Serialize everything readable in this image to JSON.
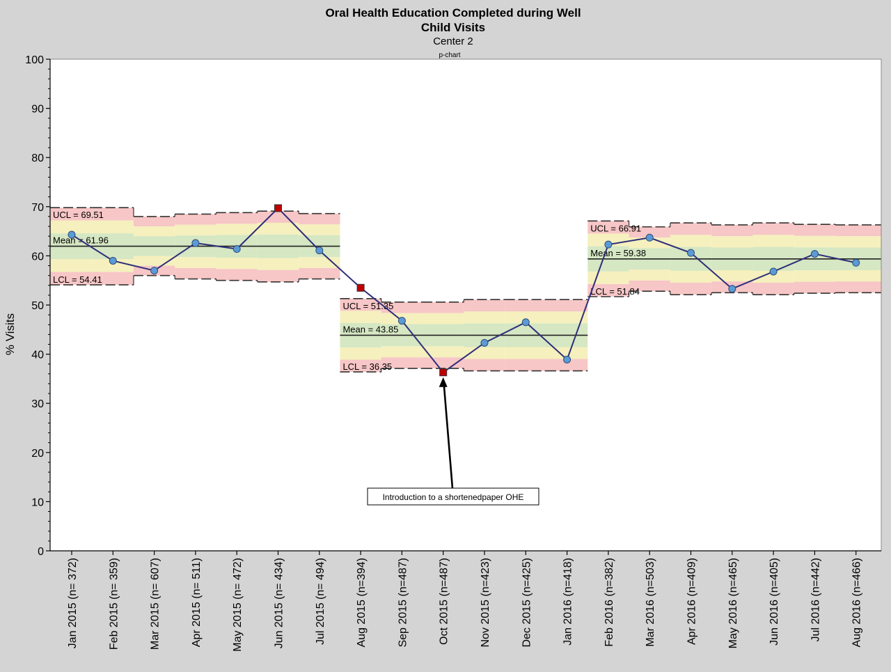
{
  "chart_data": {
    "type": "line",
    "subtype": "p-chart",
    "title_line1": "Oral Health Education Completed during Well",
    "title_line2": "Child Visits",
    "subtitle": "Center 2",
    "chart_label": "p-chart",
    "ylabel": "% Visits",
    "xlabel": "",
    "ylim": [
      0,
      100
    ],
    "yticks": [
      0,
      10,
      20,
      30,
      40,
      50,
      60,
      70,
      80,
      90,
      100
    ],
    "grid": false,
    "categories": [
      "Jan 2015 (n= 372)",
      "Feb 2015 (n= 359)",
      "Mar 2015 (n= 607)",
      "Apr 2015 (n= 511)",
      "May 2015 (n= 472)",
      "Jun 2015 (n= 434)",
      "Jul 2015 (n= 494)",
      "Aug 2015 (n=394)",
      "Sep 2015 (n=487)",
      "Oct 2015 (n=487)",
      "Nov 2015 (n=423)",
      "Dec 2015 (n=425)",
      "Jan 2016 (n=418)",
      "Feb 2016 (n=382)",
      "Mar 2016 (n=503)",
      "Apr 2016 (n=409)",
      "May 2016 (n=465)",
      "Jun 2016 (n=405)",
      "Jul 2016 (n=442)",
      "Aug 2016 (n=466)"
    ],
    "values": [
      64.3,
      59.0,
      57.0,
      62.6,
      61.4,
      69.7,
      61.1,
      53.5,
      46.8,
      36.3,
      42.3,
      46.5,
      38.9,
      62.3,
      63.7,
      60.6,
      53.3,
      56.8,
      60.4,
      58.6
    ],
    "flagged": [
      5,
      7,
      9
    ],
    "colors": {
      "line": "#2e2e7a",
      "point": "#5b9bd5",
      "point_flagged": "#c00000",
      "zone_outer": "#f7c6c6",
      "zone_middle": "#f5f0bd",
      "zone_inner": "#d5e7c3"
    },
    "phases": [
      {
        "start": 0,
        "end": 6,
        "ucl": 69.51,
        "mean": 61.96,
        "lcl": 54.41,
        "ucl_label": "UCL = 69.51",
        "mean_label": "Mean = 61.96",
        "lcl_label": "LCL = 54.41",
        "ucl_series": [
          69.8,
          69.8,
          68.0,
          68.5,
          68.8,
          69.1,
          68.6
        ],
        "lcl_series": [
          54.1,
          54.1,
          56.0,
          55.3,
          55.0,
          54.7,
          55.3
        ]
      },
      {
        "start": 7,
        "end": 12,
        "ucl": 51.35,
        "mean": 43.85,
        "lcl": 36.35,
        "ucl_label": "UCL = 51.35",
        "mean_label": "Mean = 43.85",
        "lcl_label": "LCL = 36.35",
        "ucl_series": [
          51.3,
          50.6,
          50.6,
          51.1,
          51.1,
          51.1
        ],
        "lcl_series": [
          36.4,
          37.1,
          37.1,
          36.6,
          36.6,
          36.6
        ]
      },
      {
        "start": 13,
        "end": 19,
        "ucl": 66.91,
        "mean": 59.38,
        "lcl": 51.84,
        "ucl_label": "UCL = 66.91",
        "mean_label": "Mean = 59.38",
        "lcl_label": "LCL = 51.84",
        "ucl_series": [
          67.1,
          65.9,
          66.7,
          66.3,
          66.7,
          66.4,
          66.3
        ],
        "lcl_series": [
          51.7,
          52.8,
          52.1,
          52.5,
          52.1,
          52.4,
          52.5
        ]
      }
    ],
    "annotation": {
      "text": "Introduction to a shortenedpaper OHE",
      "target_index": 9
    }
  }
}
